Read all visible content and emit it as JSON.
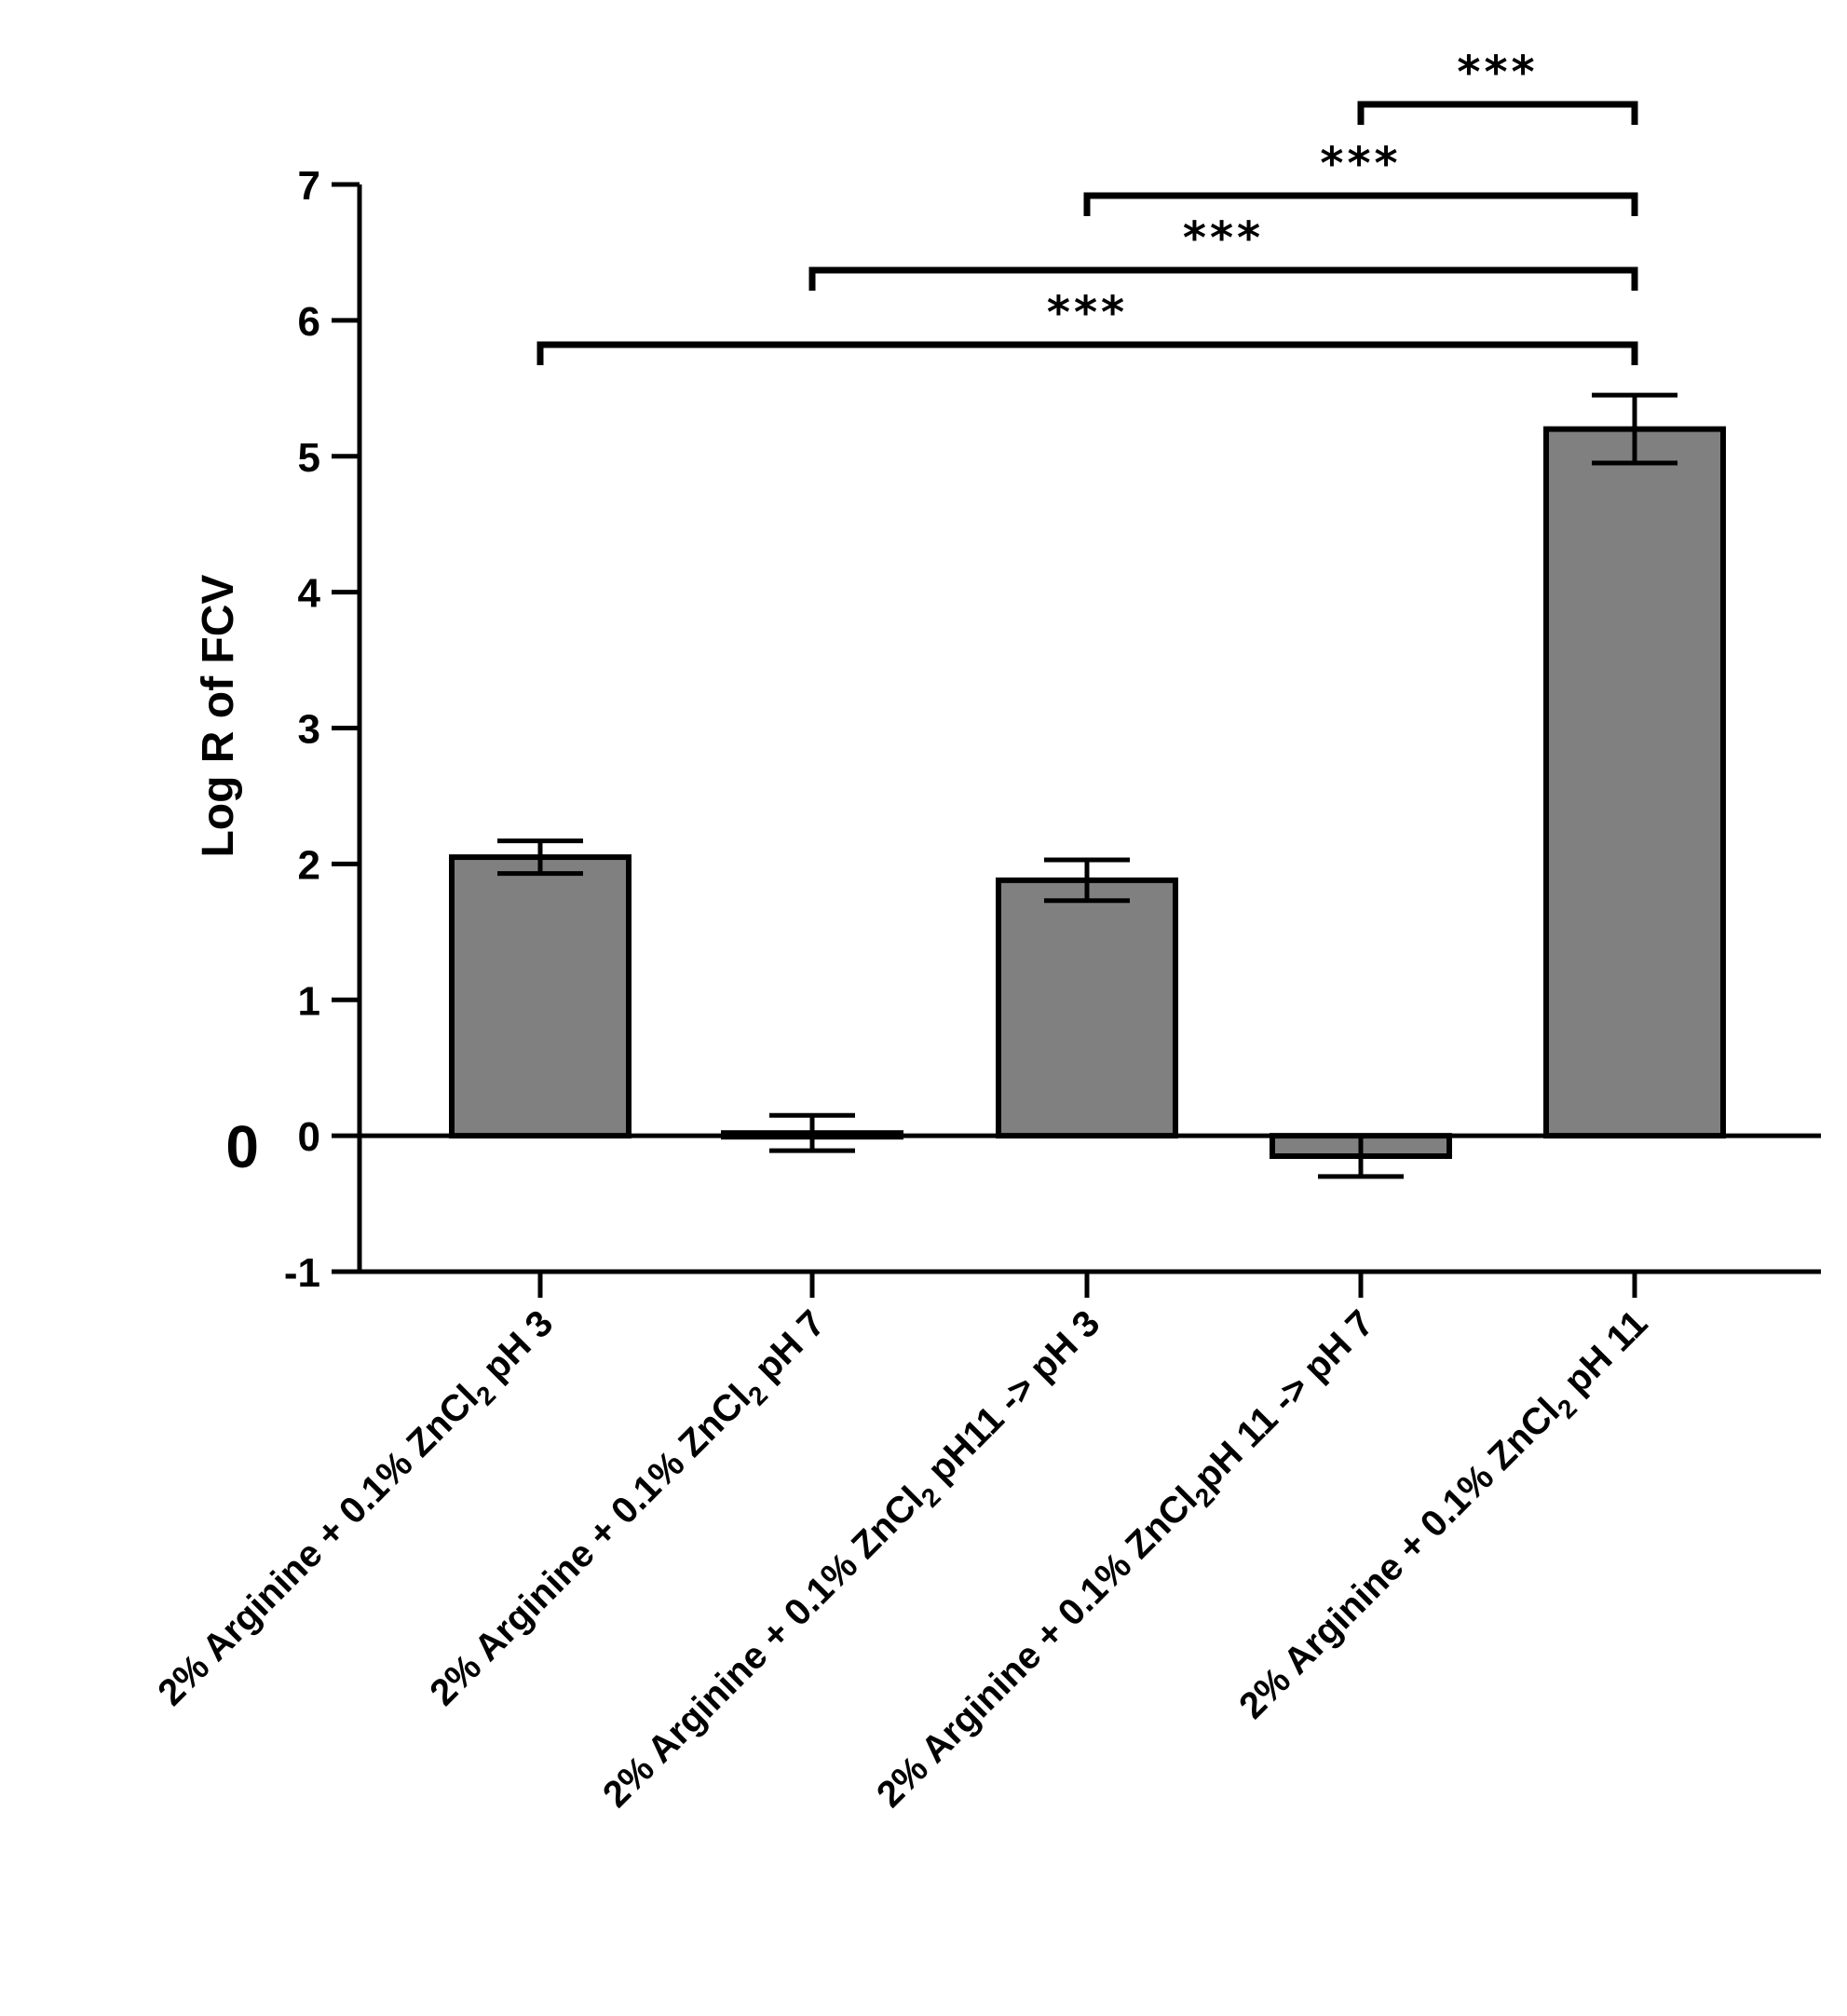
{
  "chart_data": {
    "type": "bar",
    "title": "",
    "xlabel": "",
    "ylabel": "Log R of FCV",
    "ylim": [
      -1,
      7
    ],
    "yticks": [
      -1,
      0,
      1,
      2,
      3,
      4,
      5,
      6,
      7
    ],
    "zero_line_label": "0",
    "grid": false,
    "bar_color": "#808080",
    "categories": [
      {
        "prefix": "2% Arginine + 0.1% ZnCl",
        "sub": "2",
        "suffix": " pH 3"
      },
      {
        "prefix": "2% Arginine + 0.1% ZnCl",
        "sub": "2",
        "suffix": " pH 7"
      },
      {
        "prefix": "2% Arginine + 0.1% ZnCl",
        "sub": "2",
        "suffix": " pH11 -> pH 3"
      },
      {
        "prefix": "2% Arginine + 0.1% ZnCl",
        "sub": "2",
        "suffix": "pH 11 -> pH 7"
      },
      {
        "prefix": "2% Arginine + 0.1% ZnCl",
        "sub": "2",
        "suffix": " pH 11"
      }
    ],
    "values": [
      2.05,
      0.02,
      1.88,
      -0.15,
      5.2
    ],
    "errors": [
      0.12,
      0.13,
      0.15,
      0.15,
      0.25
    ],
    "significance": [
      {
        "from": 3,
        "to": 4,
        "label": "***"
      },
      {
        "from": 2,
        "to": 4,
        "label": "***"
      },
      {
        "from": 1,
        "to": 4,
        "label": "***"
      },
      {
        "from": 0,
        "to": 4,
        "label": "***"
      }
    ]
  }
}
